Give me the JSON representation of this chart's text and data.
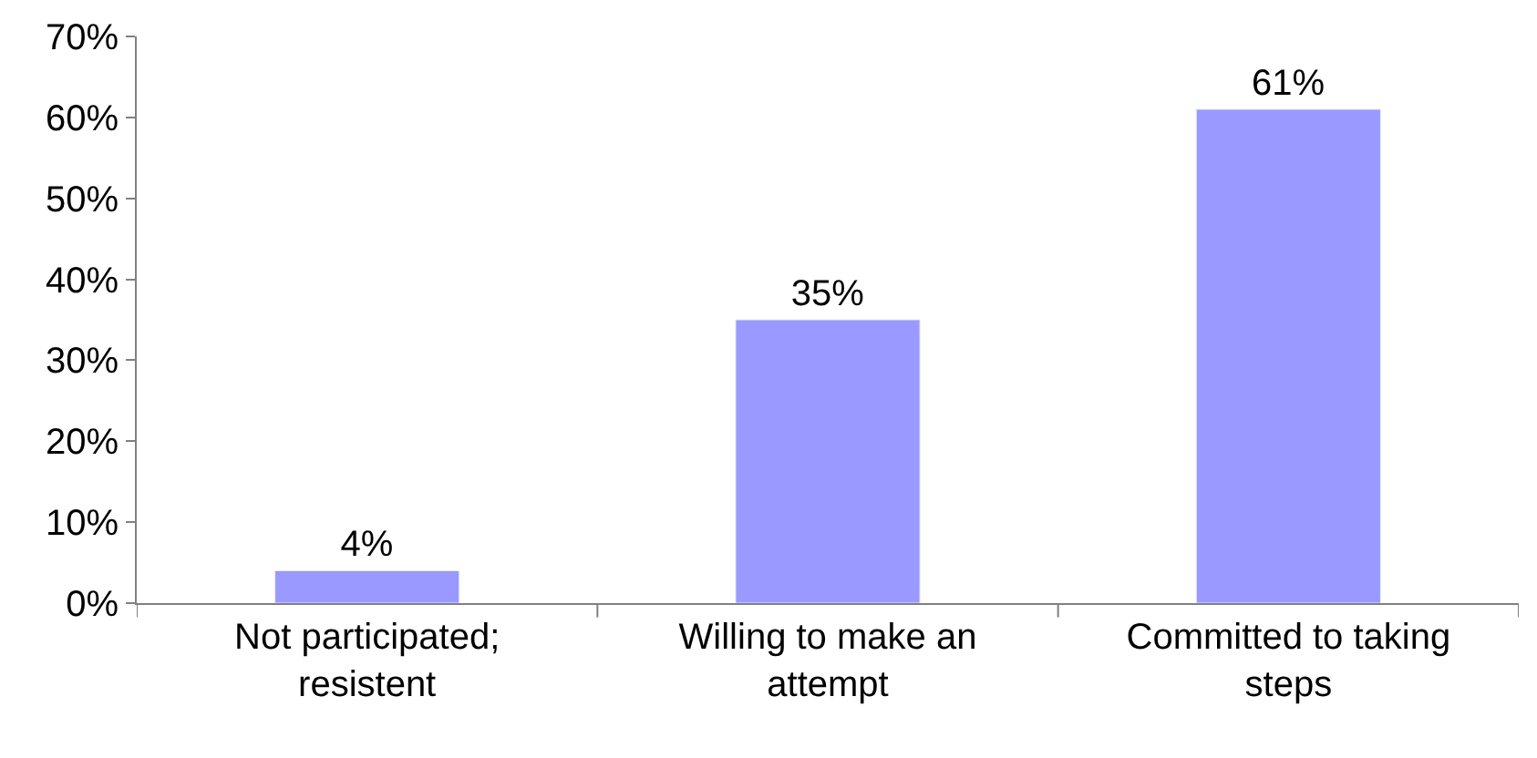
{
  "chart_data": {
    "type": "bar",
    "categories": [
      "Not participated; resistent",
      "Willing to make an attempt",
      "Committed to taking steps"
    ],
    "values": [
      4,
      35,
      61
    ],
    "color": "#9999ff",
    "ylim": [
      0,
      70
    ],
    "yticks": [
      {
        "value": 0,
        "label": "0%"
      },
      {
        "value": 10,
        "label": "10%"
      },
      {
        "value": 20,
        "label": "20%"
      },
      {
        "value": 30,
        "label": "30%"
      },
      {
        "value": 40,
        "label": "40%"
      },
      {
        "value": 50,
        "label": "50%"
      },
      {
        "value": 60,
        "label": "60%"
      },
      {
        "value": 70,
        "label": "70%"
      }
    ],
    "value_labels": [
      "4%",
      "35%",
      "61%"
    ]
  }
}
